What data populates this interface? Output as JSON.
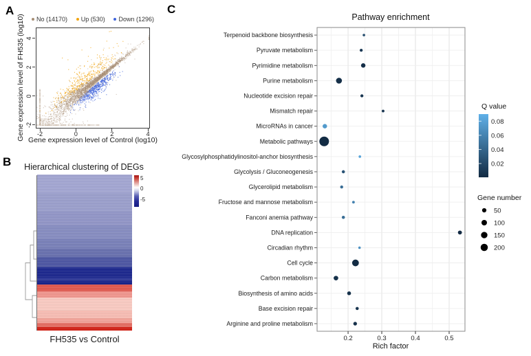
{
  "figure": {
    "panel_labels": {
      "a": "A",
      "b": "B",
      "c": "C"
    }
  },
  "chart_data": [
    {
      "id": "panel-a",
      "type": "scatter",
      "xlabel": "Gene expression level of Control (log10)",
      "ylabel": "Gene expression level of FH535 (log10)",
      "xticks": [
        -2,
        0,
        2,
        4
      ],
      "yticks": [
        -2,
        0,
        2,
        4
      ],
      "xlim": [
        -2.23,
        4.11
      ],
      "ylim": [
        -2.24,
        4.76
      ],
      "legend_position": "top",
      "grid": false,
      "series": [
        {
          "name": "No",
          "label": "No (14170)",
          "count": 14170,
          "color": "#a78e74"
        },
        {
          "name": "Up",
          "label": "Up (530)",
          "count": 530,
          "color": "#f2a50e"
        },
        {
          "name": "Down",
          "label": "Down (1296)",
          "count": 1296,
          "color": "#3f64dc"
        }
      ],
      "description": "Dense diagonal cloud of unchanged genes (brown) along y=x from -2 to 4; up-regulated genes (orange) above the diagonal; down-regulated genes (blue) below the diagonal; censored points stacked along x=-2 and y=-2.",
      "generator": {
        "seed": 7,
        "no_points": 2500,
        "up_points": 370,
        "down_points": 520,
        "up_outliers": 14,
        "floor_x_points": 140,
        "floor_y_points": 170,
        "floor_rows": [
          -1.88,
          -1.78,
          -1.68,
          -1.58
        ],
        "floor_row_points": 20,
        "point_alpha_no": 0.55,
        "point_alpha_updown": 0.85
      }
    },
    {
      "id": "panel-b",
      "type": "heatmap",
      "title": "Hierarchical clustering of DEGs",
      "xlabel": "FH535 vs Control",
      "colorbar_ticks": [
        5,
        0,
        -5
      ],
      "colorbar_range": [
        6.5,
        -8.5
      ],
      "bands": [
        {
          "h": 27,
          "color": "#a3a6d1",
          "value": -1.3
        },
        {
          "h": 27,
          "color": "#9b9fcb",
          "value": -1.6
        },
        {
          "h": 20,
          "color": "#9296c6",
          "value": -1.9
        },
        {
          "h": 20,
          "color": "#878dc0",
          "value": -2.3
        },
        {
          "h": 14,
          "color": "#7a81b8",
          "value": -2.7
        },
        {
          "h": 12,
          "color": "#6a72ae",
          "value": -3.2
        },
        {
          "h": 15,
          "color": "#4f58a3",
          "value": -3.9
        },
        {
          "h": 15,
          "color": "#1f2a8e",
          "value": -5.2
        },
        {
          "h": 5,
          "color": "#2e3897",
          "value": -4.8
        },
        {
          "h": 5,
          "color": "#1a2489",
          "value": -5.4
        },
        {
          "h": 10,
          "color": "#e05a50",
          "value": 3.6
        },
        {
          "h": 9,
          "color": "#ee968e",
          "value": 2.4
        },
        {
          "h": 19,
          "color": "#f7c9c1",
          "value": 1.2
        },
        {
          "h": 11,
          "color": "#f5bcb3",
          "value": 1.5
        },
        {
          "h": 7,
          "color": "#f0a399",
          "value": 2.1
        },
        {
          "h": 6,
          "color": "#e36e63",
          "value": 3.1
        },
        {
          "h": 5,
          "color": "#d02318",
          "value": 5.0
        }
      ]
    },
    {
      "id": "panel-c",
      "type": "scatter",
      "subtype": "dot-plot",
      "title": "Pathway enrichment",
      "xlabel": "Rich factor",
      "xticks": [
        0.2,
        0.3,
        0.4,
        0.5
      ],
      "xlim": [
        0.108,
        0.547
      ],
      "grid": true,
      "q_legend": {
        "title": "Q value",
        "ticks": [
          0.08,
          0.06,
          0.04,
          0.02
        ],
        "min": 0.0005,
        "max": 0.09,
        "color_low_q": "#132B43",
        "color_high_q": "#5FB0E8"
      },
      "size_legend": {
        "title": "Gene number",
        "values": [
          50,
          100,
          150,
          200
        ]
      },
      "pathways": [
        {
          "name": "Terpenoid backbone biosynthesis",
          "rich_factor": 0.247,
          "gene_number": 8,
          "q_value": 0.025
        },
        {
          "name": "Pyruvate metabolism",
          "rich_factor": 0.239,
          "gene_number": 15,
          "q_value": 0.01
        },
        {
          "name": "Pyrimidine metabolism",
          "rich_factor": 0.245,
          "gene_number": 55,
          "q_value": 0.003
        },
        {
          "name": "Purine metabolism",
          "rich_factor": 0.173,
          "gene_number": 120,
          "q_value": 0.003
        },
        {
          "name": "Nucleotide excision repair",
          "rich_factor": 0.241,
          "gene_number": 16,
          "q_value": 0.008
        },
        {
          "name": "Mismatch repair",
          "rich_factor": 0.304,
          "gene_number": 10,
          "q_value": 0.008
        },
        {
          "name": "MicroRNAs in cancer",
          "rich_factor": 0.131,
          "gene_number": 55,
          "q_value": 0.075
        },
        {
          "name": "Metabolic pathways",
          "rich_factor": 0.129,
          "gene_number": 400,
          "q_value": 0.001
        },
        {
          "name": "Glycosylphosphatidylinositol-anchor biosynthesis",
          "rich_factor": 0.235,
          "gene_number": 8,
          "q_value": 0.082
        },
        {
          "name": "Glycolysis / Gluconeogenesis",
          "rich_factor": 0.186,
          "gene_number": 18,
          "q_value": 0.028
        },
        {
          "name": "Glycerolipid metabolism",
          "rich_factor": 0.181,
          "gene_number": 16,
          "q_value": 0.045
        },
        {
          "name": "Fructose and mannose metabolism",
          "rich_factor": 0.216,
          "gene_number": 10,
          "q_value": 0.06
        },
        {
          "name": "Fanconi anemia pathway",
          "rich_factor": 0.186,
          "gene_number": 18,
          "q_value": 0.045
        },
        {
          "name": "DNA replication",
          "rich_factor": 0.532,
          "gene_number": 40,
          "q_value": 0.0008
        },
        {
          "name": "Circadian rhythm",
          "rich_factor": 0.234,
          "gene_number": 7,
          "q_value": 0.07
        },
        {
          "name": "Cell cycle",
          "rich_factor": 0.222,
          "gene_number": 170,
          "q_value": 0.001
        },
        {
          "name": "Carbon metabolism",
          "rich_factor": 0.164,
          "gene_number": 60,
          "q_value": 0.005
        },
        {
          "name": "Biosynthesis of amino acids",
          "rich_factor": 0.203,
          "gene_number": 35,
          "q_value": 0.005
        },
        {
          "name": "Base excision repair",
          "rich_factor": 0.227,
          "gene_number": 18,
          "q_value": 0.007
        },
        {
          "name": "Arginine and proline metabolism",
          "rich_factor": 0.221,
          "gene_number": 30,
          "q_value": 0.005
        }
      ]
    }
  ]
}
